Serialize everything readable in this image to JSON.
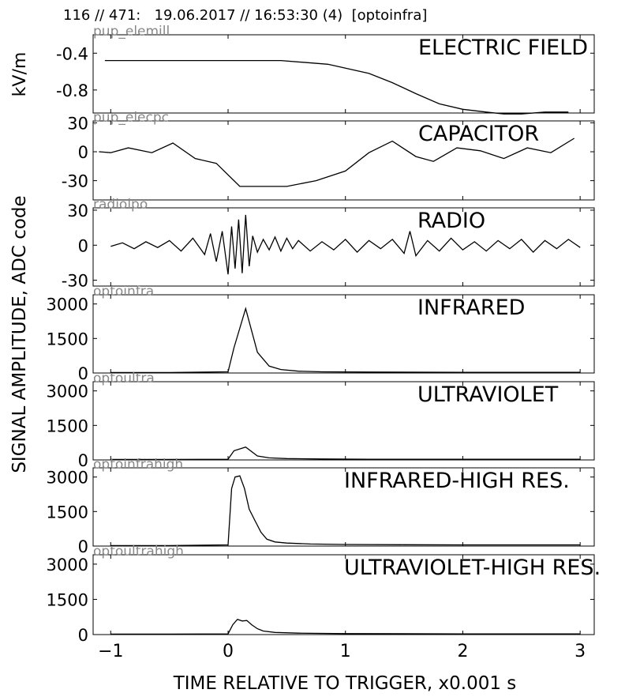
{
  "header": "116 // 471:   19.06.2017 // 16:53:30 (4)  [optoinfra]",
  "ylabel_top": "kV/m",
  "ylabel_main": "SIGNAL AMPLITUDE,  ADC code",
  "xlabel": "TIME RELATIVE TO TRIGGER,   x0.001 s",
  "colors": {
    "line": "#000000",
    "channel_label": "#888888"
  },
  "chart_data": [
    {
      "type": "line",
      "title": "ELECTRIC FIELD",
      "channel": "pup_elemill",
      "ylim": [
        -1.05,
        -0.2
      ],
      "yticks": [
        -0.4,
        -0.8
      ],
      "ytick_labels": [
        "-0.4",
        "-0.8"
      ],
      "x": [
        -1.05,
        0.45,
        0.85,
        1.2,
        1.4,
        1.6,
        1.8,
        2.0,
        2.2,
        2.35,
        2.5,
        2.7,
        2.9
      ],
      "y": [
        -0.48,
        -0.48,
        -0.52,
        -0.62,
        -0.72,
        -0.84,
        -0.95,
        -1.01,
        -1.04,
        -1.06,
        -1.06,
        -1.04,
        -1.04
      ]
    },
    {
      "type": "line",
      "title": "CAPACITOR",
      "channel": "pup_elecpc",
      "ylim": [
        -50,
        32
      ],
      "yticks": [
        30,
        0,
        -30
      ],
      "ytick_labels": [
        "30",
        "0",
        "-30"
      ],
      "x": [
        -1.1,
        -1.0,
        -0.85,
        -0.65,
        -0.47,
        -0.28,
        -0.1,
        0.1,
        0.5,
        0.75,
        1.0,
        1.2,
        1.4,
        1.6,
        1.75,
        1.95,
        2.15,
        2.35,
        2.55,
        2.75,
        2.95
      ],
      "y": [
        0,
        -1,
        4,
        -1,
        9,
        -7,
        -12,
        -36,
        -36,
        -30,
        -20,
        -1,
        11,
        -5,
        -10,
        4,
        1,
        -7,
        4,
        -1,
        14
      ]
    },
    {
      "type": "line",
      "title": "RADIO",
      "channel": "radiolpo",
      "ylim": [
        -35,
        32
      ],
      "yticks": [
        30,
        0,
        -30
      ],
      "ytick_labels": [
        "30",
        "0",
        "-30"
      ],
      "x": [
        -1.0,
        -0.9,
        -0.8,
        -0.7,
        -0.6,
        -0.5,
        -0.4,
        -0.3,
        -0.2,
        -0.15,
        -0.1,
        -0.05,
        0.0,
        0.03,
        0.06,
        0.09,
        0.12,
        0.15,
        0.18,
        0.21,
        0.25,
        0.3,
        0.35,
        0.4,
        0.45,
        0.5,
        0.55,
        0.6,
        0.7,
        0.8,
        0.9,
        1.0,
        1.1,
        1.2,
        1.3,
        1.4,
        1.5,
        1.55,
        1.6,
        1.7,
        1.8,
        1.9,
        2.0,
        2.1,
        2.2,
        2.3,
        2.4,
        2.5,
        2.6,
        2.7,
        2.8,
        2.9,
        3.0
      ],
      "y": [
        -1,
        2,
        -3,
        3,
        -2,
        4,
        -5,
        6,
        -8,
        10,
        -14,
        12,
        -25,
        16,
        -20,
        22,
        -24,
        26,
        -18,
        8,
        -6,
        5,
        -4,
        7,
        -5,
        6,
        -3,
        4,
        -5,
        3,
        -4,
        5,
        -6,
        4,
        -3,
        5,
        -7,
        12,
        -9,
        4,
        -5,
        6,
        -4,
        3,
        -5,
        4,
        -3,
        5,
        -6,
        4,
        -3,
        5,
        -2
      ]
    },
    {
      "type": "line",
      "title": "INFRARED",
      "channel": "optoinfra",
      "ylim": [
        0,
        3400
      ],
      "yticks": [
        3000,
        1500,
        0
      ],
      "ytick_labels": [
        "3000",
        "1500",
        "0"
      ],
      "x": [
        -1.0,
        -0.5,
        0.0,
        0.05,
        0.15,
        0.25,
        0.35,
        0.45,
        0.6,
        0.8,
        1.2,
        2.0,
        3.0
      ],
      "y": [
        20,
        20,
        50,
        1100,
        2800,
        900,
        300,
        150,
        80,
        50,
        40,
        30,
        30
      ]
    },
    {
      "type": "line",
      "title": "ULTRAVIOLET",
      "channel": "optoultra",
      "ylim": [
        0,
        3400
      ],
      "yticks": [
        3000,
        1500,
        0
      ],
      "ytick_labels": [
        "3000",
        "1500",
        "0"
      ],
      "x": [
        -1.0,
        -0.5,
        0.0,
        0.05,
        0.15,
        0.25,
        0.35,
        0.5,
        0.8,
        1.2,
        2.0,
        3.0
      ],
      "y": [
        20,
        20,
        30,
        400,
        560,
        170,
        90,
        60,
        40,
        30,
        30,
        30
      ]
    },
    {
      "type": "line",
      "title": "INFRARED-HIGH RES.",
      "channel": "optoinfrahigh",
      "ylim": [
        0,
        3400
      ],
      "yticks": [
        3000,
        1500,
        0
      ],
      "ytick_labels": [
        "3000",
        "1500",
        "0"
      ],
      "x": [
        -1.0,
        -0.5,
        0.0,
        0.03,
        0.06,
        0.1,
        0.14,
        0.18,
        0.23,
        0.28,
        0.33,
        0.4,
        0.5,
        0.7,
        1.0,
        1.5,
        2.0,
        3.0
      ],
      "y": [
        20,
        20,
        50,
        2500,
        3000,
        3050,
        2500,
        1600,
        1100,
        600,
        300,
        180,
        130,
        90,
        70,
        60,
        50,
        50
      ]
    },
    {
      "type": "line",
      "title": "ULTRAVIOLET-HIGH RES.",
      "channel": "optoultrahigh",
      "ylim": [
        0,
        3400
      ],
      "yticks": [
        3000,
        1500,
        0
      ],
      "ytick_labels": [
        "3000",
        "1500",
        "0"
      ],
      "x": [
        -1.0,
        -0.5,
        0.0,
        0.04,
        0.08,
        0.12,
        0.16,
        0.2,
        0.25,
        0.3,
        0.4,
        0.6,
        1.0,
        2.0,
        3.0
      ],
      "y": [
        20,
        20,
        30,
        420,
        650,
        580,
        600,
        420,
        250,
        150,
        90,
        60,
        40,
        30,
        30
      ]
    }
  ],
  "x_axis": {
    "xlim": [
      -1.15,
      3.12
    ],
    "ticks": [
      -1,
      0,
      1,
      2,
      3
    ],
    "tick_labels": [
      "−1",
      "0",
      "1",
      "2",
      "3"
    ]
  }
}
